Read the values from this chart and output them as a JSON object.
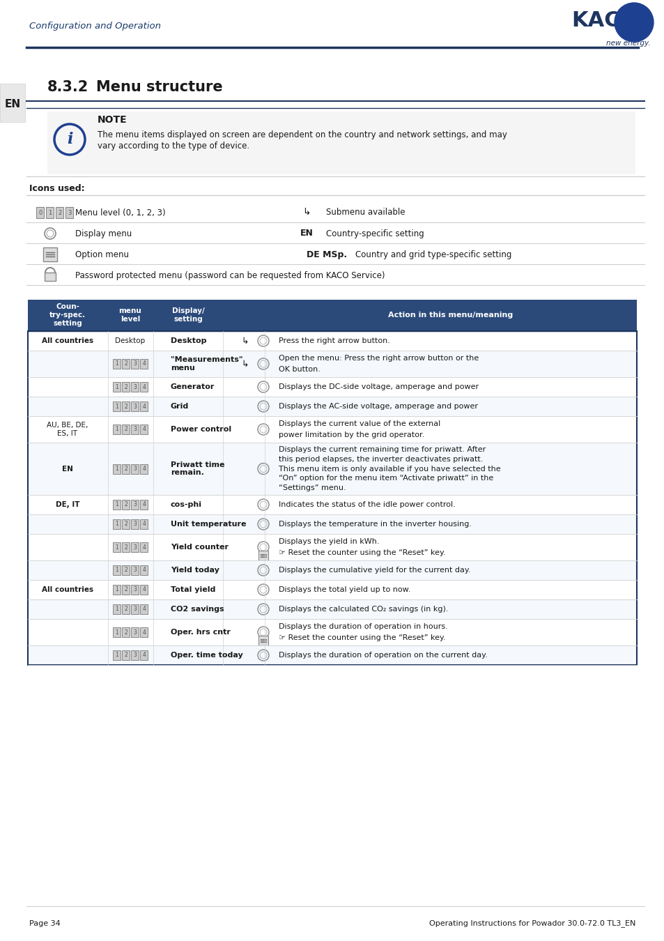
{
  "kaco_blue": "#1a3a6b",
  "kaco_dark_blue": "#1e3560",
  "header_blue": "#1e3a5f",
  "light_gray": "#d0d0d0",
  "medium_gray": "#a0a0a0",
  "table_header_bg": "#2b4a7a",
  "table_row_alt": "#f0f4f8",
  "white": "#ffffff",
  "black": "#000000",
  "dark_text": "#1a1a1a",
  "blue_text": "#1e3a7a",
  "note_bg": "#f8f8f8",
  "header_text": "Configuration and Operation",
  "section_number": "8.3.2",
  "section_title": "Menu structure",
  "note_title": "NOTE",
  "note_text": "The menu items displayed on screen are dependent on the country and network settings, and may\nvary according to the type of device.",
  "icons_used_label": "Icons used:",
  "icon_rows": [
    {
      "icon": "menu_level",
      "desc": "Menu level (0, 1, 2, 3)",
      "icon2": "submenu",
      "desc2": "Submenu available"
    },
    {
      "icon": "display",
      "desc": "Display menu",
      "icon2": "EN",
      "desc2": "Country-specific setting"
    },
    {
      "icon": "option",
      "desc": "Option menu",
      "icon2": "DE MSp.",
      "desc2": "Country and grid type-specific setting"
    },
    {
      "icon": "password",
      "desc": "Password protected menu (password can be requested from KACO Service)",
      "icon2": "",
      "desc2": ""
    }
  ],
  "table_headers": [
    "Coun-\ntry-spec.\nsetting",
    "menu\nlevel",
    "Display/\nsetting",
    "",
    "Action in this menu/meaning"
  ],
  "table_rows": [
    {
      "country": "",
      "level": "Desktop",
      "display": "Desktop",
      "sub": "↳",
      "action": "Press the right arrow button.",
      "icon": "display",
      "rowspan": 4,
      "country_label": "All countries"
    },
    {
      "country": "",
      "level": "1•2•3•4",
      "display": "\"Measurements\"\nmenu",
      "sub": "↳",
      "action": "Open the menu: Press the right arrow button or the\nOK button.",
      "icon": "display"
    },
    {
      "country": "",
      "level": "1•2•3•4",
      "display": "Generator",
      "sub": "",
      "action": "Displays the DC-side voltage, amperage and power",
      "icon": "display"
    },
    {
      "country": "",
      "level": "1•2•3•4",
      "display": "Grid",
      "sub": "",
      "action": "Displays the AC-side voltage, amperage and power",
      "icon": "display"
    },
    {
      "country": "AU, BE, DE,\nES, IT",
      "level": "1•2•3•4",
      "display": "Power control",
      "sub": "",
      "action": "Displays the current value of the external\npower limitation by the grid operator.",
      "icon": "display"
    },
    {
      "country": "EN",
      "level": "1•2•3•4",
      "display": "Priwatt time\nremain.",
      "sub": "",
      "action": "Displays the current remaining time for priwatt. After\nthis period elapses, the inverter deactivates priwatt.\nThis menu item is only available if you have selected the\n“On” option for the menu item “Activate priwatt” in the\n“Settings” menu.",
      "icon": "display"
    },
    {
      "country": "DE, IT",
      "level": "1•2•3•4",
      "display": "cos-phi",
      "sub": "",
      "action": "Indicates the status of the idle power control.",
      "icon": "display"
    },
    {
      "country": "",
      "level": "1•2•3•4",
      "display": "Unit temperature",
      "sub": "",
      "action": "Displays the temperature in the inverter housing.",
      "icon": "display"
    },
    {
      "country": "",
      "level": "1•2•3•4",
      "display": "Yield counter",
      "sub": "",
      "action": "Displays the yield in kWh.\n☞ Reset the counter using the “Reset” key.",
      "icon": "both"
    },
    {
      "country": "",
      "level": "1•2•3•4",
      "display": "Yield today",
      "sub": "",
      "action": "Displays the cumulative yield for the current day.",
      "icon": "display"
    },
    {
      "country": "All countries",
      "level": "1•2•3•4",
      "display": "Total yield",
      "sub": "",
      "action": "Displays the total yield up to now.",
      "icon": "display"
    },
    {
      "country": "",
      "level": "1•2•3•4",
      "display": "CO2 savings",
      "sub": "",
      "action": "Displays the calculated CO₂ savings (in kg).",
      "icon": "display"
    },
    {
      "country": "",
      "level": "1•2•3•4",
      "display": "Oper. hrs cntr",
      "sub": "",
      "action": "Displays the duration of operation in hours.\n☞ Reset the counter using the “Reset” key.",
      "icon": "both"
    },
    {
      "country": "",
      "level": "1•2•3•4",
      "display": "Oper. time today",
      "sub": "",
      "action": "Displays the duration of operation on the current day.",
      "icon": "display"
    }
  ],
  "footer_left": "Page 34",
  "footer_right": "Operating Instructions for Powador 30.0-72.0 TL3_EN"
}
